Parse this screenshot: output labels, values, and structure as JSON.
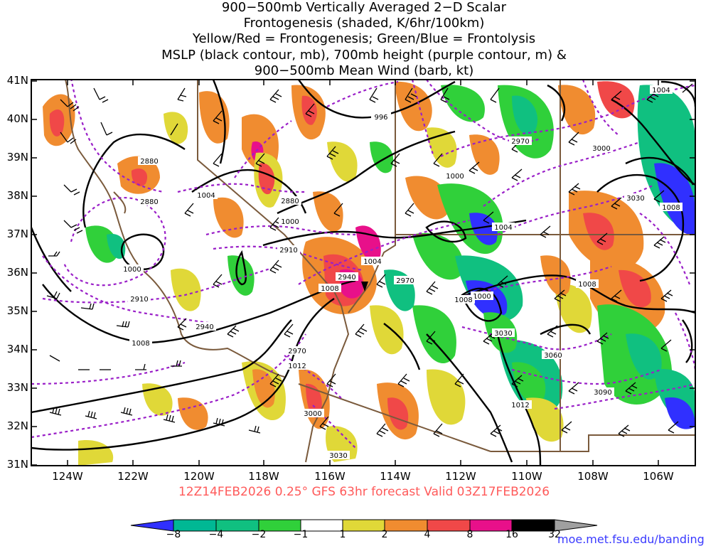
{
  "title": {
    "line1": "900−500mb Vertically Averaged 2−D Scalar",
    "line2": "Frontogenesis (shaded, K/6hr/100km)",
    "line3": "Yellow/Red = Frontogenesis;  Green/Blue = Frontolysis",
    "line4": "MSLP (black contour, mb), 700mb height (purple contour, m) &",
    "line5": "900−500mb Mean Wind (barb, kt)"
  },
  "map": {
    "lat_labels": [
      "41N",
      "40N",
      "39N",
      "38N",
      "37N",
      "36N",
      "35N",
      "34N",
      "33N",
      "32N",
      "31N"
    ],
    "lon_labels": [
      "124W",
      "122W",
      "120W",
      "118W",
      "116W",
      "114W",
      "112W",
      "110W",
      "108W",
      "106W"
    ],
    "mslp_labels": [
      "996",
      "1000",
      "1000",
      "1000",
      "1000",
      "1004",
      "1004",
      "1004",
      "1004",
      "1008",
      "1008",
      "1008",
      "1008",
      "1008",
      "1012",
      "1012"
    ],
    "height_labels": [
      "2880",
      "2880",
      "2880",
      "2910",
      "2910",
      "2940",
      "2940",
      "2970",
      "2970",
      "2970",
      "3000",
      "3000",
      "3030",
      "3030",
      "3030",
      "3060",
      "3090"
    ],
    "valid_text": "12Z14FEB2026 0.25° GFS 63hr forecast Valid 03Z17FEB2026"
  },
  "colorbar": {
    "labels": [
      "−8",
      "−4",
      "−2",
      "−1",
      "1",
      "2",
      "4",
      "8",
      "16",
      "32"
    ],
    "colors": [
      "#3030ff",
      "#00b894",
      "#10c080",
      "#30d03a",
      "#ffffff",
      "#e0d838",
      "#f08c30",
      "#f04848",
      "#e8108a",
      "#000000"
    ]
  },
  "credit": "moe.met.fsu.edu/banding"
}
